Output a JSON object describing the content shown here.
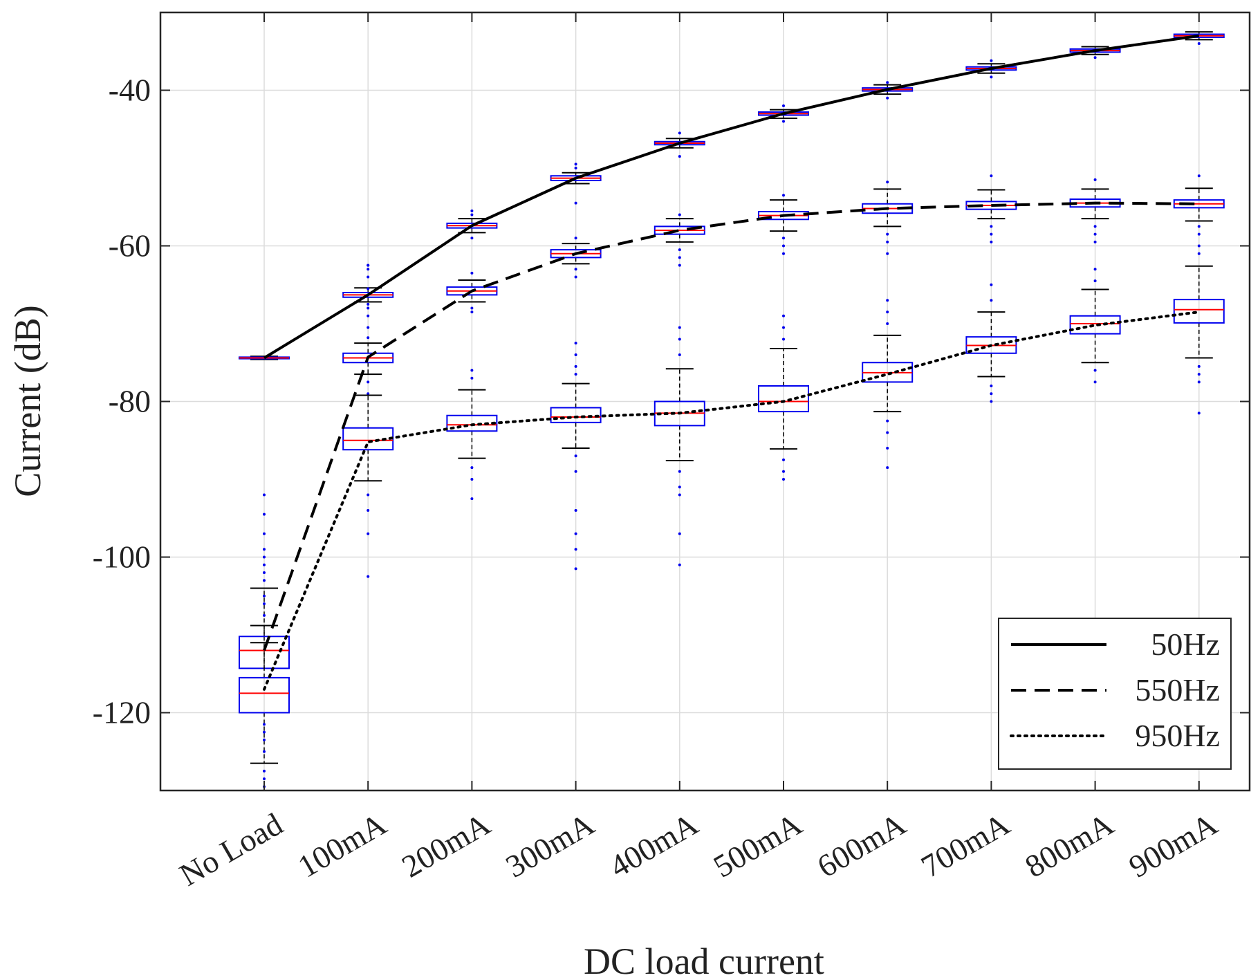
{
  "chart_data": {
    "type": "box",
    "title": "",
    "xlabel": "DC load current",
    "ylabel": "Current (dB)",
    "ylim": [
      -130,
      -30
    ],
    "yticks": [
      -120,
      -100,
      -80,
      -60,
      -40
    ],
    "grid": true,
    "legend_position": "bottom-right",
    "categories": [
      "No Load",
      "100mA",
      "200mA",
      "300mA",
      "400mA",
      "500mA",
      "600mA",
      "700mA",
      "800mA",
      "900mA"
    ],
    "series": [
      {
        "name": "50Hz",
        "line_style": "solid",
        "values": [
          -74.4,
          -66.3,
          -57.4,
          -51.3,
          -46.8,
          -43.0,
          -39.9,
          -37.2,
          -34.9,
          -33.0
        ],
        "boxes": [
          {
            "q1": -74.5,
            "median": -74.4,
            "q3": -74.3,
            "wlo": -74.6,
            "whi": -74.2,
            "outliers": []
          },
          {
            "q1": -66.6,
            "median": -66.3,
            "q3": -66.0,
            "wlo": -67.2,
            "whi": -65.4,
            "outliers": [
              -63,
              -62.5,
              -68
            ]
          },
          {
            "q1": -57.7,
            "median": -57.4,
            "q3": -57.1,
            "wlo": -58.3,
            "whi": -56.5,
            "outliers": [
              -55.5,
              -56,
              -59
            ]
          },
          {
            "q1": -51.6,
            "median": -51.3,
            "q3": -51.0,
            "wlo": -52.0,
            "whi": -50.6,
            "outliers": [
              -49.5,
              -50,
              -54.5
            ]
          },
          {
            "q1": -47.0,
            "median": -46.8,
            "q3": -46.6,
            "wlo": -47.4,
            "whi": -46.2,
            "outliers": [
              -45.5,
              -48.5
            ]
          },
          {
            "q1": -43.2,
            "median": -43.0,
            "q3": -42.8,
            "wlo": -43.6,
            "whi": -42.5,
            "outliers": [
              -42,
              -44
            ]
          },
          {
            "q1": -40.1,
            "median": -39.9,
            "q3": -39.7,
            "wlo": -40.5,
            "whi": -39.3,
            "outliers": [
              -39,
              -41
            ]
          },
          {
            "q1": -37.4,
            "median": -37.2,
            "q3": -37.0,
            "wlo": -37.8,
            "whi": -36.6,
            "outliers": [
              -36.2,
              -38.3
            ]
          },
          {
            "q1": -35.1,
            "median": -34.9,
            "q3": -34.7,
            "wlo": -35.4,
            "whi": -34.4,
            "outliers": [
              -35.8
            ]
          },
          {
            "q1": -33.2,
            "median": -33.0,
            "q3": -32.8,
            "wlo": -33.5,
            "whi": -32.5,
            "outliers": [
              -34
            ]
          }
        ]
      },
      {
        "name": "550Hz",
        "line_style": "dashed",
        "values": [
          -112,
          -74.3,
          -65.8,
          -61.0,
          -58.0,
          -56.1,
          -55.2,
          -54.8,
          -54.5,
          -54.6
        ],
        "boxes": [
          {
            "q1": -114.3,
            "median": -112.0,
            "q3": -110.2,
            "wlo": -108.8,
            "whi": -104.0,
            "outliers": [
              -92,
              -94.5,
              -97,
              -99,
              -100,
              -101,
              -102,
              -103,
              -105,
              -106,
              -107.5
            ]
          },
          {
            "q1": -75.0,
            "median": -74.4,
            "q3": -73.8,
            "wlo": -76.5,
            "whi": -72.5,
            "outliers": [
              -62.5,
              -64,
              -65.5,
              -67.5,
              -69,
              -70.5,
              -71.8,
              -77.5,
              -79
            ]
          },
          {
            "q1": -66.3,
            "median": -65.8,
            "q3": -65.3,
            "wlo": -67.2,
            "whi": -64.4,
            "outliers": [
              -63.5,
              -68,
              -68.5
            ]
          },
          {
            "q1": -61.5,
            "median": -61.0,
            "q3": -60.5,
            "wlo": -62.3,
            "whi": -59.7,
            "outliers": [
              -59,
              -63,
              -64
            ]
          },
          {
            "q1": -58.5,
            "median": -58.0,
            "q3": -57.5,
            "wlo": -59.5,
            "whi": -56.5,
            "outliers": [
              -56,
              -60.5,
              -61.5,
              -62.5
            ]
          },
          {
            "q1": -56.6,
            "median": -56.1,
            "q3": -55.6,
            "wlo": -58.1,
            "whi": -54.1,
            "outliers": [
              -53.5,
              -59,
              -60,
              -61
            ]
          },
          {
            "q1": -55.8,
            "median": -55.2,
            "q3": -54.6,
            "wlo": -57.5,
            "whi": -52.7,
            "outliers": [
              -51.8,
              -58.5,
              -59.5,
              -61
            ]
          },
          {
            "q1": -55.3,
            "median": -54.8,
            "q3": -54.3,
            "wlo": -56.5,
            "whi": -52.8,
            "outliers": [
              -51,
              -57.5,
              -58.5,
              -59.5
            ]
          },
          {
            "q1": -55.0,
            "median": -54.5,
            "q3": -54.0,
            "wlo": -56.5,
            "whi": -52.7,
            "outliers": [
              -51.5,
              -57.5,
              -58.5,
              -59.5
            ]
          },
          {
            "q1": -55.1,
            "median": -54.6,
            "q3": -54.1,
            "wlo": -56.8,
            "whi": -52.6,
            "outliers": [
              -51,
              -57.5,
              -58.5,
              -60
            ]
          }
        ]
      },
      {
        "name": "950Hz",
        "line_style": "dotted",
        "values": [
          -117,
          -85.2,
          -83.0,
          -82.0,
          -81.5,
          -80.0,
          -76.5,
          -72.8,
          -70.2,
          -68.5
        ],
        "boxes": [
          {
            "q1": -120.0,
            "median": -117.5,
            "q3": -115.5,
            "wlo": -126.5,
            "whi": -111.0,
            "outliers": [
              -121.5,
              -122.5,
              -123.5,
              -125,
              -127.5,
              -128.5,
              -129.5
            ]
          },
          {
            "q1": -86.2,
            "median": -85.0,
            "q3": -83.4,
            "wlo": -90.2,
            "whi": -79.2,
            "outliers": [
              -92,
              -94,
              -97,
              -102.5
            ]
          },
          {
            "q1": -83.8,
            "median": -83.0,
            "q3": -81.8,
            "wlo": -87.3,
            "whi": -78.5,
            "outliers": [
              -76,
              -77,
              -88.5,
              -90,
              -92.5
            ]
          },
          {
            "q1": -82.7,
            "median": -82.0,
            "q3": -80.8,
            "wlo": -86.0,
            "whi": -77.7,
            "outliers": [
              -72.5,
              -74,
              -75.5,
              -76.5,
              -87,
              -89,
              -94,
              -97,
              -99,
              -101.5
            ]
          },
          {
            "q1": -83.1,
            "median": -81.5,
            "q3": -80.0,
            "wlo": -87.6,
            "whi": -75.8,
            "outliers": [
              -70.5,
              -72,
              -74,
              -89,
              -91,
              -92,
              -97,
              -101
            ]
          },
          {
            "q1": -81.3,
            "median": -80.0,
            "q3": -78.0,
            "wlo": -86.1,
            "whi": -73.2,
            "outliers": [
              -69,
              -70.5,
              -72,
              -87.5,
              -89,
              -90
            ]
          },
          {
            "q1": -77.5,
            "median": -76.3,
            "q3": -75.0,
            "wlo": -81.3,
            "whi": -71.5,
            "outliers": [
              -67,
              -68.5,
              -70,
              -82.5,
              -84,
              -86,
              -88.5
            ]
          },
          {
            "q1": -73.8,
            "median": -72.8,
            "q3": -71.7,
            "wlo": -76.8,
            "whi": -68.5,
            "outliers": [
              -65,
              -67,
              -78,
              -79,
              -80
            ]
          },
          {
            "q1": -71.3,
            "median": -70.0,
            "q3": -69.0,
            "wlo": -75.0,
            "whi": -65.6,
            "outliers": [
              -63,
              -64.5,
              -76,
              -77.5
            ]
          },
          {
            "q1": -69.9,
            "median": -68.2,
            "q3": -66.9,
            "wlo": -74.4,
            "whi": -62.6,
            "outliers": [
              -61,
              -75.5,
              -76.5,
              -77.5,
              -81.5
            ]
          }
        ]
      }
    ]
  }
}
